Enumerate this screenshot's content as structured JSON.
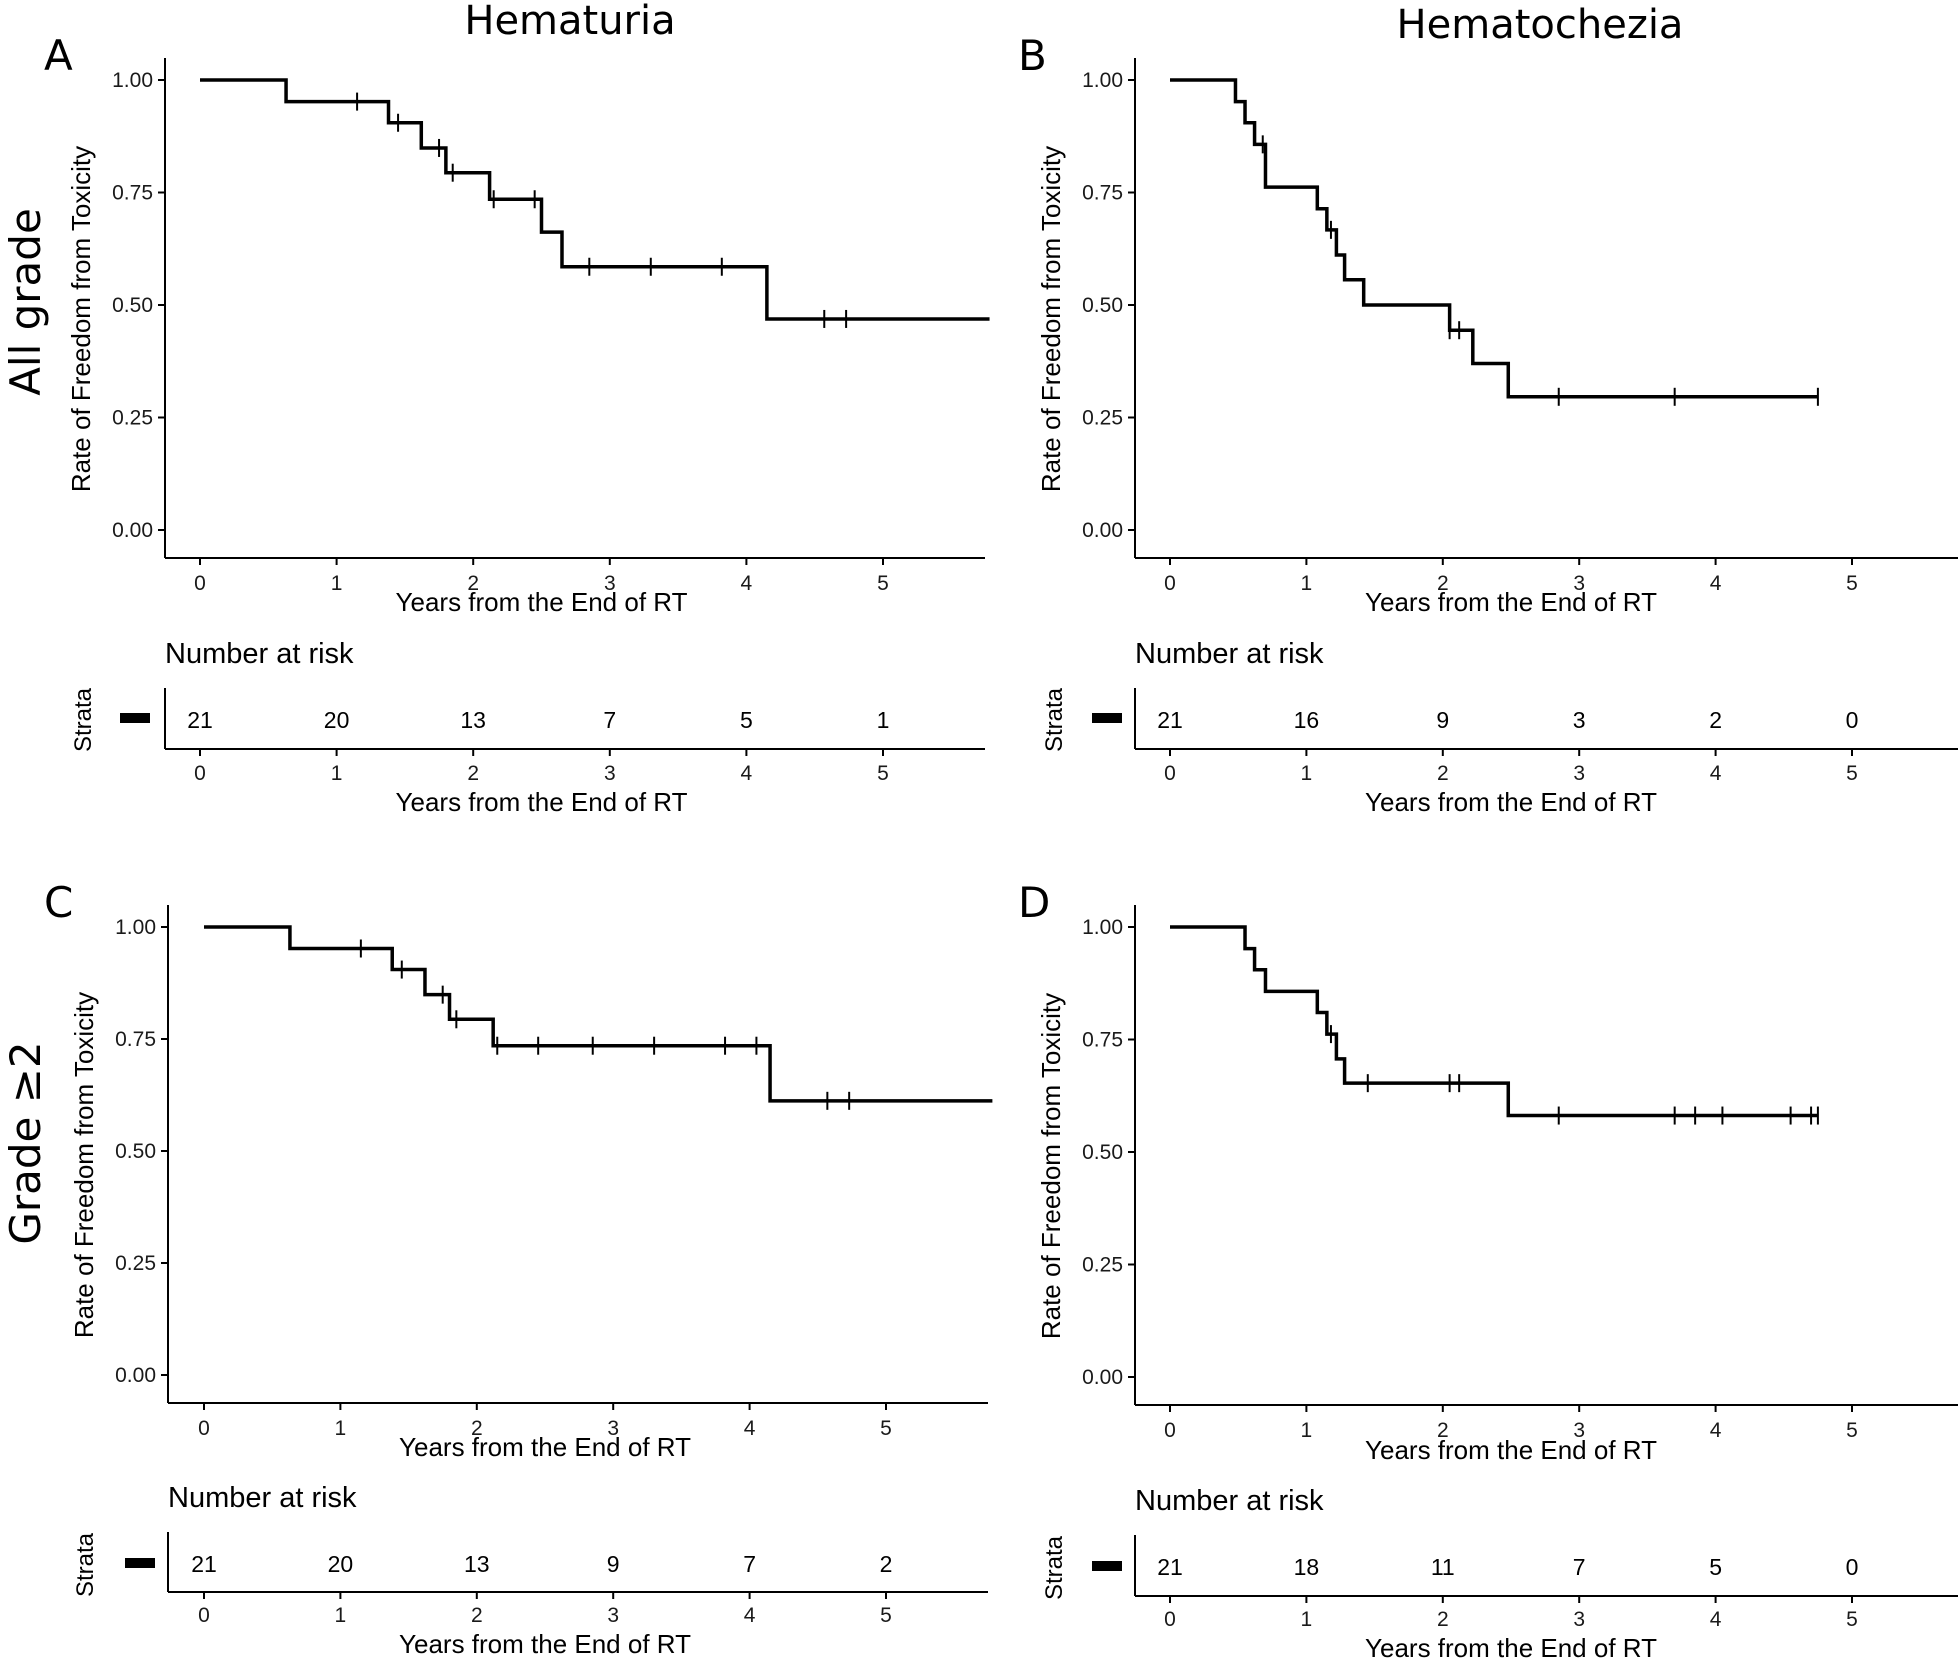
{
  "column_titles": [
    "Hematuria",
    "Hematochezia"
  ],
  "row_labels": [
    "All grade",
    "Grade ≥2"
  ],
  "chart_data": [
    {
      "type": "line",
      "panel": "A",
      "title": "Hematuria",
      "row": "All grade",
      "xlabel": "Years from the End of RT",
      "ylabel": "Rate of Freedom from Toxicity",
      "xlim": [
        -0.3,
        5.78
      ],
      "ylim": [
        0,
        1
      ],
      "xticks": [
        0,
        1,
        2,
        3,
        4,
        5
      ],
      "yticks": [
        0.0,
        0.25,
        0.5,
        0.75,
        1.0
      ],
      "ytick_labels": [
        "0.00",
        "0.25",
        "0.50",
        "0.75",
        "1.00"
      ],
      "step_x": [
        0,
        0.63,
        1.38,
        1.62,
        1.8,
        2.12,
        2.5,
        2.65,
        4.15,
        5.78
      ],
      "step_y": [
        1.0,
        0.952,
        0.905,
        0.849,
        0.794,
        0.735,
        0.662,
        0.585,
        0.469,
        0.469
      ],
      "censor_x": [
        1.15,
        1.45,
        1.75,
        1.85,
        2.15,
        2.45,
        2.85,
        3.3,
        3.82,
        4.57,
        4.73
      ],
      "risk_table": {
        "title": "Number at risk",
        "strata_label": "Strata",
        "times": [
          0,
          1,
          2,
          3,
          4,
          5
        ],
        "counts": [
          "21",
          "20",
          "13",
          "7",
          "5",
          "1"
        ],
        "xlabel": "Years from the End of RT"
      }
    },
    {
      "type": "line",
      "panel": "B",
      "title": "Hematochezia",
      "row": "All grade",
      "xlabel": "Years from the End of RT",
      "ylabel": "Rate of Freedom from Toxicity",
      "xlim": [
        -0.3,
        5.78
      ],
      "ylim": [
        0,
        1
      ],
      "xticks": [
        0,
        1,
        2,
        3,
        4,
        5
      ],
      "yticks": [
        0.0,
        0.25,
        0.5,
        0.75,
        1.0
      ],
      "ytick_labels": [
        "0.00",
        "0.25",
        "0.50",
        "0.75",
        "1.00"
      ],
      "step_x": [
        0,
        0.48,
        0.55,
        0.62,
        0.7,
        1.08,
        1.15,
        1.22,
        1.28,
        1.42,
        2.05,
        2.22,
        2.48,
        4.75
      ],
      "step_y": [
        1.0,
        0.952,
        0.905,
        0.857,
        0.762,
        0.714,
        0.667,
        0.611,
        0.556,
        0.5,
        0.444,
        0.37,
        0.296,
        0.296
      ],
      "censor_x": [
        0.68,
        1.18,
        2.05,
        2.12,
        2.85,
        3.7,
        4.75
      ],
      "risk_table": {
        "title": "Number at risk",
        "strata_label": "Strata",
        "times": [
          0,
          1,
          2,
          3,
          4,
          5
        ],
        "counts": [
          "21",
          "16",
          "9",
          "3",
          "2",
          "0"
        ],
        "xlabel": "Years from the End of RT"
      }
    },
    {
      "type": "line",
      "panel": "C",
      "title": "Hematuria",
      "row": "Grade ≥2",
      "xlabel": "Years from the End of RT",
      "ylabel": "Rate of Freedom from Toxicity",
      "xlim": [
        -0.3,
        5.78
      ],
      "ylim": [
        0,
        1
      ],
      "xticks": [
        0,
        1,
        2,
        3,
        4,
        5
      ],
      "yticks": [
        0.0,
        0.25,
        0.5,
        0.75,
        1.0
      ],
      "ytick_labels": [
        "0.00",
        "0.25",
        "0.50",
        "0.75",
        "1.00"
      ],
      "step_x": [
        0,
        0.63,
        1.38,
        1.62,
        1.8,
        2.12,
        4.15,
        5.78
      ],
      "step_y": [
        1.0,
        0.952,
        0.905,
        0.849,
        0.794,
        0.735,
        0.612,
        0.612
      ],
      "censor_x": [
        1.15,
        1.45,
        1.75,
        1.85,
        2.15,
        2.45,
        2.85,
        3.3,
        3.82,
        4.05,
        4.57,
        4.73
      ],
      "risk_table": {
        "title": "Number at risk",
        "strata_label": "Strata",
        "times": [
          0,
          1,
          2,
          3,
          4,
          5
        ],
        "counts": [
          "21",
          "20",
          "13",
          "9",
          "7",
          "2"
        ],
        "xlabel": "Years from the End of RT"
      }
    },
    {
      "type": "line",
      "panel": "D",
      "title": "Hematochezia",
      "row": "Grade ≥2",
      "xlabel": "Years from the End of RT",
      "ylabel": "Rate of Freedom from Toxicity",
      "xlim": [
        -0.3,
        5.78
      ],
      "ylim": [
        0,
        1
      ],
      "xticks": [
        0,
        1,
        2,
        3,
        4,
        5
      ],
      "yticks": [
        0.0,
        0.25,
        0.5,
        0.75,
        1.0
      ],
      "ytick_labels": [
        "0.00",
        "0.25",
        "0.50",
        "0.75",
        "1.00"
      ],
      "step_x": [
        0,
        0.55,
        0.62,
        0.7,
        1.08,
        1.15,
        1.22,
        1.28,
        2.48,
        4.75
      ],
      "step_y": [
        1.0,
        0.952,
        0.905,
        0.857,
        0.81,
        0.762,
        0.707,
        0.653,
        0.581,
        0.581
      ],
      "censor_x": [
        1.18,
        1.45,
        2.05,
        2.12,
        2.85,
        3.7,
        3.85,
        4.05,
        4.55,
        4.7,
        4.75
      ],
      "risk_table": {
        "title": "Number at risk",
        "strata_label": "Strata",
        "times": [
          0,
          1,
          2,
          3,
          4,
          5
        ],
        "counts": [
          "21",
          "18",
          "11",
          "7",
          "5",
          "0"
        ],
        "xlabel": "Years from the End of RT"
      }
    }
  ]
}
